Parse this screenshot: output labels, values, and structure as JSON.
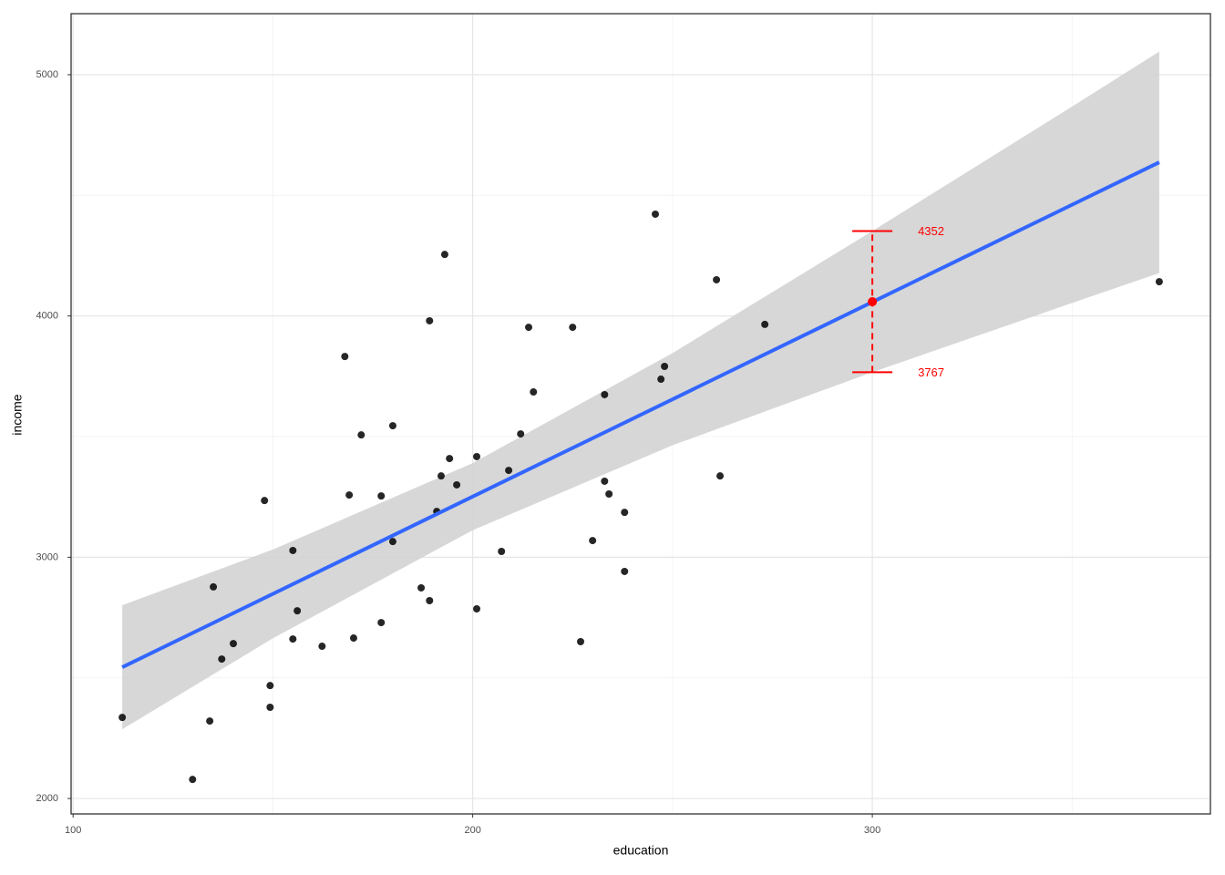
{
  "chart_data": {
    "type": "scatter",
    "x_label": "education",
    "y_label": "income",
    "xlim": [
      99.5,
      384.6
    ],
    "ylim": [
      1936,
      5253
    ],
    "xticks": [
      100,
      200,
      300
    ],
    "yticks": [
      2000,
      3000,
      4000,
      5000
    ],
    "xminor": [
      150,
      250,
      350
    ],
    "yminor": [
      2500,
      3500,
      4500
    ],
    "grid": true,
    "color": "#000000",
    "x": [
      112.3,
      129.9,
      134.2,
      135.1,
      137.2,
      140.1,
      147.9,
      149.3,
      149.3,
      155.0,
      155.0,
      156.1,
      162.3,
      168.0,
      169.1,
      170.2,
      172.1,
      177.1,
      177.1,
      180.0,
      180.0,
      187.1,
      189.2,
      189.2,
      191.0,
      192.1,
      193.0,
      194.2,
      196.0,
      201.0,
      201.0,
      207.2,
      209.0,
      212.0,
      214.0,
      215.2,
      225.0,
      227.0,
      230.0,
      233.0,
      233.0,
      234.1,
      238.0,
      238.0,
      245.7,
      247.1,
      248.0,
      261.0,
      261.9,
      273.1,
      371.8
    ],
    "values": [
      2336,
      2079,
      2321,
      2877,
      2578,
      2642,
      3235,
      2468,
      2378,
      3028,
      2661,
      2778,
      2631,
      3832,
      3258,
      2665,
      3507,
      3254,
      2729,
      3545,
      3065,
      2873,
      3980,
      2820,
      3190,
      3337,
      4255,
      3409,
      3300,
      3417,
      2786,
      3024,
      3360,
      3511,
      3953,
      3685,
      3953,
      2650,
      3069,
      3674,
      3315,
      3262,
      3186,
      2941,
      4422,
      3738,
      3791,
      4150,
      3337,
      3965,
      4142
    ],
    "fit": {
      "color": "#3366ff",
      "x": [
        112.3,
        371.8
      ],
      "values": [
        2544,
        4637
      ]
    },
    "ribbon": {
      "color": "#d3d3d3",
      "x": [
        112.3,
        150,
        200,
        250,
        300,
        350,
        371.8
      ],
      "lower": [
        2287,
        2664,
        3112,
        3464,
        3767,
        4054,
        4178
      ],
      "upper": [
        2801,
        3032,
        3390,
        3846,
        4352,
        4868,
        5096
      ]
    },
    "prediction": {
      "color": "#ff0000",
      "x": 300,
      "value": 4059,
      "lower": 3767,
      "upper": 4352
    }
  }
}
